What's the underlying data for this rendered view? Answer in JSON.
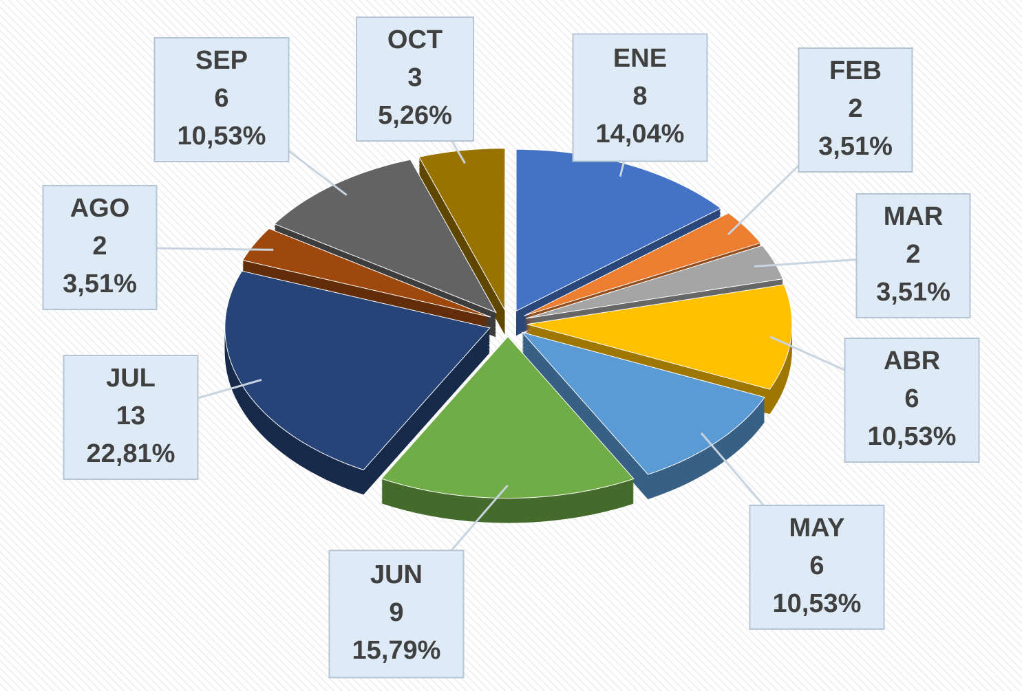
{
  "chart_data": {
    "type": "pie",
    "categories": [
      "ENE",
      "FEB",
      "MAR",
      "ABR",
      "MAY",
      "JUN",
      "JUL",
      "AGO",
      "SEP",
      "OCT"
    ],
    "values": [
      8,
      2,
      2,
      6,
      6,
      9,
      13,
      2,
      6,
      3
    ],
    "percentages": [
      14.04,
      3.51,
      3.51,
      10.53,
      10.53,
      15.79,
      22.81,
      3.51,
      10.53,
      5.26
    ],
    "percentage_labels": [
      "14,04%",
      "3,51%",
      "3,51%",
      "10,53%",
      "10,53%",
      "15,79%",
      "22,81%",
      "3,51%",
      "10,53%",
      "5,26%"
    ],
    "colors": [
      "#4472c4",
      "#ed7d31",
      "#a5a5a5",
      "#ffc000",
      "#5b9bd5",
      "#70ad47",
      "#264478",
      "#9e480e",
      "#636363",
      "#997300"
    ]
  }
}
